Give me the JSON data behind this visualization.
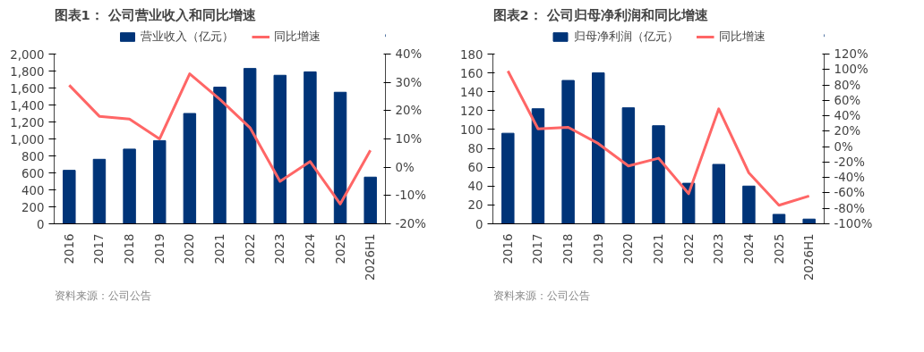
{
  "chart_data": [
    {
      "type": "bar",
      "title": "图表1： 公司营业收入和同比增速",
      "categories": [
        "2016",
        "2017",
        "2018",
        "2019",
        "2020",
        "2021",
        "2022",
        "2023",
        "2024",
        "2025",
        "2026H1"
      ],
      "series": [
        {
          "name": "营业收入（亿元）",
          "color": "#003478",
          "values": [
            630,
            760,
            880,
            980,
            1300,
            1610,
            1830,
            1750,
            1790,
            1550,
            550
          ]
        },
        {
          "name": "同比增速",
          "color": "#ff6666",
          "type": "line",
          "axis": "y2",
          "values": [
            29,
            18,
            17,
            10,
            33,
            24,
            14,
            -5,
            2,
            -13,
            6
          ]
        }
      ],
      "ylim": [
        0,
        2000
      ],
      "yticks": [
        0,
        200,
        400,
        600,
        800,
        {
          "value": 1000,
          "label": "1,000"
        },
        {
          "value": 1200,
          "label": "1,200"
        },
        {
          "value": 1400,
          "label": "1,400"
        },
        {
          "value": 1600,
          "label": "1,600"
        },
        {
          "value": 1800,
          "label": "1,800"
        },
        {
          "value": 2000,
          "label": "2,000"
        }
      ],
      "y2lim": [
        -20,
        40
      ],
      "y2ticks": [
        {
          "value": -20,
          "label": "-20%"
        },
        {
          "value": -10,
          "label": "-10%"
        },
        {
          "value": 0,
          "label": "0%"
        },
        {
          "value": 10,
          "label": "10%"
        },
        {
          "value": 20,
          "label": "20%"
        },
        {
          "value": 30,
          "label": "30%"
        },
        {
          "value": 40,
          "label": "40%"
        }
      ],
      "legend": "top",
      "annotations": [
        "资料来源：公司公告"
      ]
    },
    {
      "type": "bar",
      "title": "图表2： 公司归母净利润和同比增速",
      "categories": [
        "2016",
        "2017",
        "2018",
        "2019",
        "2020",
        "2021",
        "2022",
        "2023",
        "2024",
        "2025",
        "2026H1"
      ],
      "series": [
        {
          "name": "归母净利润（亿元）",
          "color": "#003478",
          "values": [
            96,
            122,
            152,
            160,
            123,
            104,
            43,
            63,
            40,
            10,
            5
          ]
        },
        {
          "name": "同比增速",
          "color": "#ff6666",
          "type": "line",
          "axis": "y2",
          "values": [
            98,
            23,
            25,
            4,
            -25,
            -15,
            -61,
            49,
            -34,
            -76,
            -64
          ]
        }
      ],
      "ylim": [
        0,
        180
      ],
      "yticks": [
        0,
        20,
        40,
        60,
        80,
        100,
        120,
        140,
        160,
        180
      ],
      "y2lim": [
        -100,
        120
      ],
      "y2ticks": [
        {
          "value": -100,
          "label": "-100%"
        },
        {
          "value": -80,
          "label": "-80%"
        },
        {
          "value": -60,
          "label": "-60%"
        },
        {
          "value": -40,
          "label": "-40%"
        },
        {
          "value": -20,
          "label": "-20%"
        },
        {
          "value": 0,
          "label": "0%"
        },
        {
          "value": 20,
          "label": "20%"
        },
        {
          "value": 40,
          "label": "40%"
        },
        {
          "value": 60,
          "label": "60%"
        },
        {
          "value": 80,
          "label": "80%"
        },
        {
          "value": 100,
          "label": "100%"
        },
        {
          "value": 120,
          "label": "120%"
        }
      ],
      "legend": "top",
      "annotations": [
        "资料来源：公司公告"
      ]
    }
  ]
}
